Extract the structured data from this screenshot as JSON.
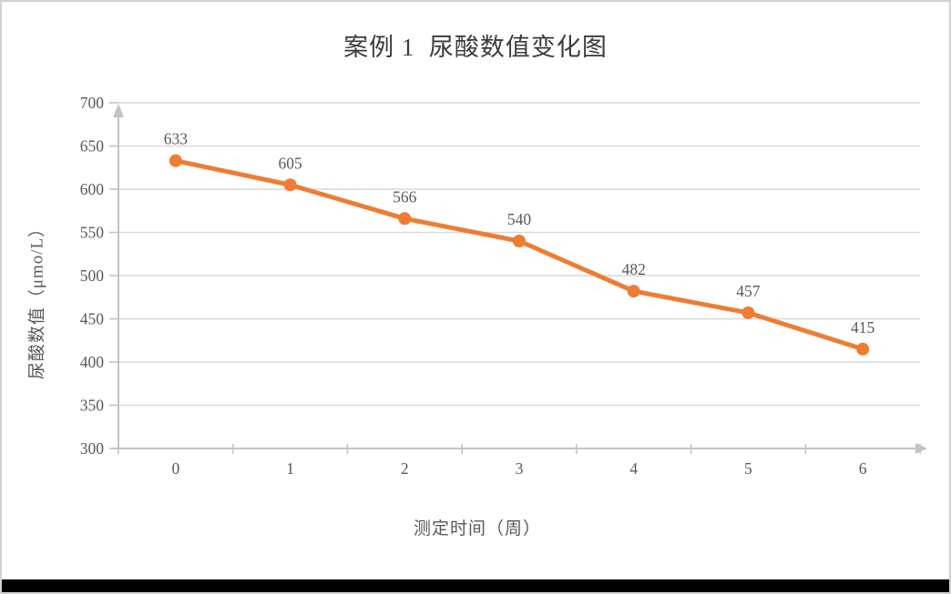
{
  "frame": {
    "background": "#ffffff",
    "border_color": "#d2d2d2",
    "bottom_bar_color": "#000000"
  },
  "chart_data": {
    "type": "line",
    "title": "案例 1  尿酸数值变化图",
    "xlabel": "测定时间（周）",
    "ylabel": "尿酸数值（μmo/L）",
    "categories": [
      "0",
      "1",
      "2",
      "3",
      "4",
      "5",
      "6"
    ],
    "series": [
      {
        "name": "尿酸数值",
        "values": [
          633,
          605,
          566,
          540,
          482,
          457,
          415
        ],
        "color": "#ED7D31",
        "marker": "circle",
        "data_labels_shown": true
      }
    ],
    "ylim": [
      300,
      700
    ],
    "ytick_interval": 50,
    "yticks": [
      300,
      350,
      400,
      450,
      500,
      550,
      600,
      650,
      700
    ],
    "grid": "horizontal",
    "legend": "none",
    "axis_arrows": {
      "x": true,
      "y": true
    },
    "colors": {
      "series": "#ED7D31",
      "gridline": "#D9D9D9",
      "axis": "#C3C3C3",
      "tick_label": "#595959",
      "data_label": "#595959",
      "title": "#3b3b3b",
      "axis_title": "#595959"
    }
  }
}
